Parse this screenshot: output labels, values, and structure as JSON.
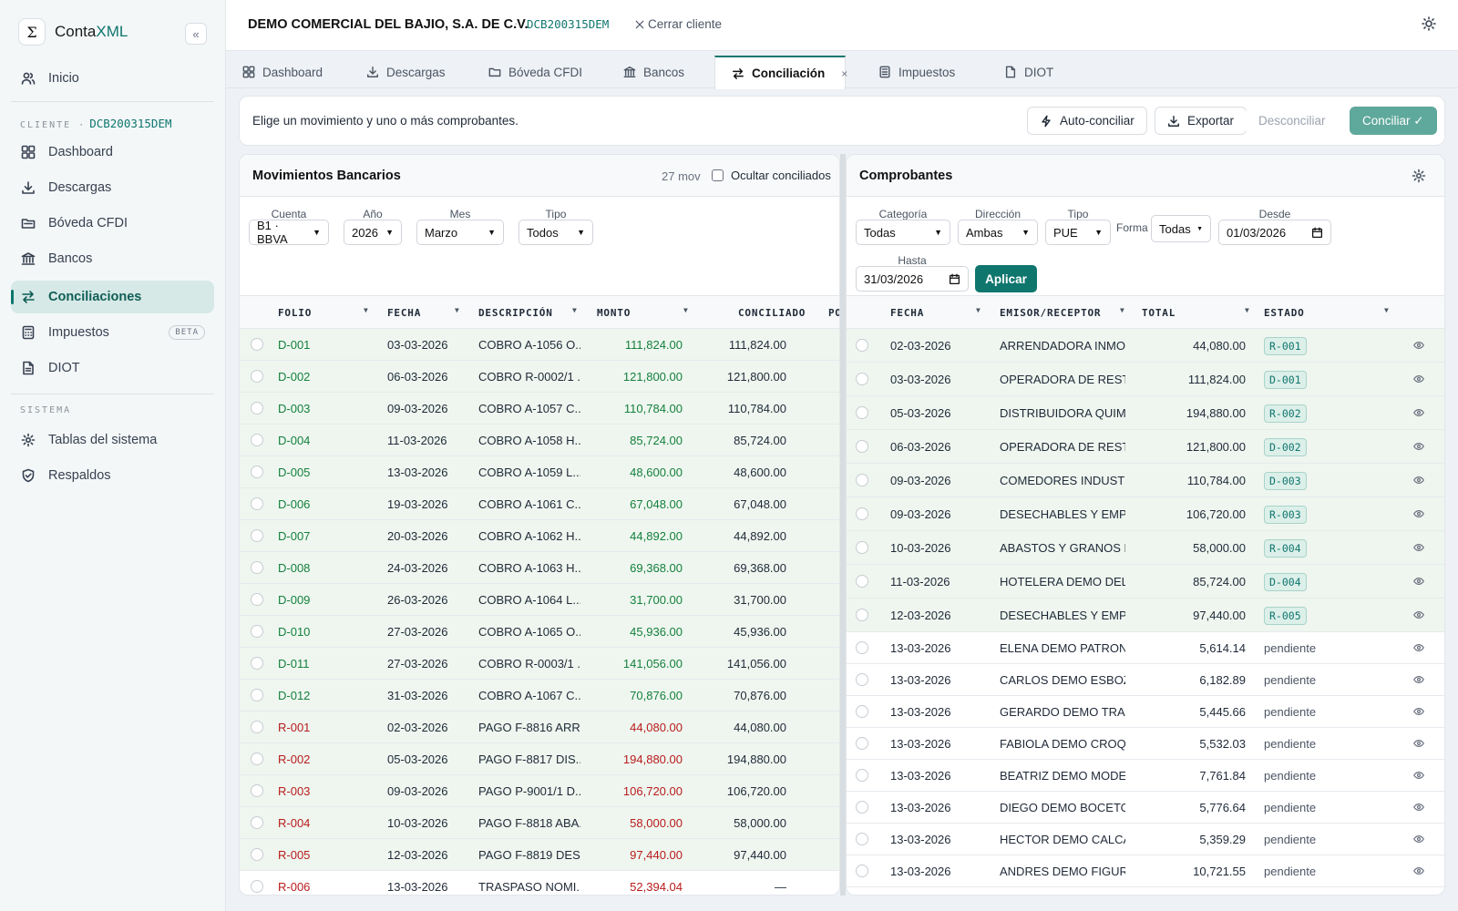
{
  "app": {
    "brand_prefix": "Conta",
    "brand_suffix": "XML",
    "logo_glyph": "Σ",
    "collapse_glyph": "«"
  },
  "sidebar": {
    "home": "Inicio",
    "client_label": "CLIENTE ·",
    "client_rfc": "DCB200315DEM",
    "items": [
      {
        "label": "Dashboard",
        "icon": "dashboard-icon"
      },
      {
        "label": "Descargas",
        "icon": "download-icon"
      },
      {
        "label": "Bóveda CFDI",
        "icon": "folder-icon"
      },
      {
        "label": "Bancos",
        "icon": "bank-icon"
      },
      {
        "label": "Conciliaciones",
        "icon": "reconcile-icon",
        "active": true
      },
      {
        "label": "Impuestos",
        "icon": "calculator-icon",
        "badge": "BETA"
      },
      {
        "label": "DIOT",
        "icon": "document-icon"
      }
    ],
    "system_label": "SISTEMA",
    "system_items": [
      {
        "label": "Tablas del sistema",
        "icon": "gear-icon"
      },
      {
        "label": "Respaldos",
        "icon": "shield-icon"
      }
    ]
  },
  "header": {
    "client_name": "DEMO COMERCIAL DEL BAJIO, S.A. DE C.V.",
    "dot": "·",
    "client_rfc": "DCB200315DEM",
    "close_client": "Cerrar cliente"
  },
  "tabs": [
    {
      "label": "Dashboard"
    },
    {
      "label": "Descargas"
    },
    {
      "label": "Bóveda CFDI"
    },
    {
      "label": "Bancos"
    },
    {
      "label": "Conciliación",
      "active": true,
      "close": "×"
    },
    {
      "label": "Impuestos"
    },
    {
      "label": "DIOT"
    }
  ],
  "toolbar": {
    "instruction": "Elige un movimiento y uno o más comprobantes.",
    "auto": "Auto-conciliar",
    "export": "Exportar",
    "unreconcile": "Desconciliar",
    "reconcile": "Conciliar ✓"
  },
  "movements": {
    "title": "Movimientos Bancarios",
    "count": "27 mov",
    "hide_label": "Ocultar conciliados",
    "filters": {
      "account_label": "Cuenta",
      "account": "B1 · BBVA",
      "year_label": "Año",
      "year": "2026",
      "month_label": "Mes",
      "month": "Marzo",
      "type_label": "Tipo",
      "type": "Todos"
    },
    "columns": [
      "FOLIO",
      "FECHA",
      "DESCRIPCIÓN",
      "MONTO",
      "CONCILIADO",
      "PO"
    ],
    "rows": [
      {
        "folio": "D-001",
        "date": "03-03-2026",
        "desc": "COBRO A-1056 O...",
        "amount": "111,824.00",
        "rec": "111,824.00",
        "kind": "d"
      },
      {
        "folio": "D-002",
        "date": "06-03-2026",
        "desc": "COBRO R-0002/1 ...",
        "amount": "121,800.00",
        "rec": "121,800.00",
        "kind": "d"
      },
      {
        "folio": "D-003",
        "date": "09-03-2026",
        "desc": "COBRO A-1057 C...",
        "amount": "110,784.00",
        "rec": "110,784.00",
        "kind": "d"
      },
      {
        "folio": "D-004",
        "date": "11-03-2026",
        "desc": "COBRO A-1058 H...",
        "amount": "85,724.00",
        "rec": "85,724.00",
        "kind": "d"
      },
      {
        "folio": "D-005",
        "date": "13-03-2026",
        "desc": "COBRO A-1059 L...",
        "amount": "48,600.00",
        "rec": "48,600.00",
        "kind": "d"
      },
      {
        "folio": "D-006",
        "date": "19-03-2026",
        "desc": "COBRO A-1061 C...",
        "amount": "67,048.00",
        "rec": "67,048.00",
        "kind": "d"
      },
      {
        "folio": "D-007",
        "date": "20-03-2026",
        "desc": "COBRO A-1062 H...",
        "amount": "44,892.00",
        "rec": "44,892.00",
        "kind": "d"
      },
      {
        "folio": "D-008",
        "date": "24-03-2026",
        "desc": "COBRO A-1063 H...",
        "amount": "69,368.00",
        "rec": "69,368.00",
        "kind": "d"
      },
      {
        "folio": "D-009",
        "date": "26-03-2026",
        "desc": "COBRO A-1064 L...",
        "amount": "31,700.00",
        "rec": "31,700.00",
        "kind": "d"
      },
      {
        "folio": "D-010",
        "date": "27-03-2026",
        "desc": "COBRO A-1065 O...",
        "amount": "45,936.00",
        "rec": "45,936.00",
        "kind": "d"
      },
      {
        "folio": "D-011",
        "date": "27-03-2026",
        "desc": "COBRO R-0003/1 ...",
        "amount": "141,056.00",
        "rec": "141,056.00",
        "kind": "d"
      },
      {
        "folio": "D-012",
        "date": "31-03-2026",
        "desc": "COBRO A-1067 C...",
        "amount": "70,876.00",
        "rec": "70,876.00",
        "kind": "d"
      },
      {
        "folio": "R-001",
        "date": "02-03-2026",
        "desc": "PAGO F-8816 ARR...",
        "amount": "44,080.00",
        "rec": "44,080.00",
        "kind": "r"
      },
      {
        "folio": "R-002",
        "date": "05-03-2026",
        "desc": "PAGO F-8817 DIS...",
        "amount": "194,880.00",
        "rec": "194,880.00",
        "kind": "r"
      },
      {
        "folio": "R-003",
        "date": "09-03-2026",
        "desc": "PAGO P-9001/1 D...",
        "amount": "106,720.00",
        "rec": "106,720.00",
        "kind": "r"
      },
      {
        "folio": "R-004",
        "date": "10-03-2026",
        "desc": "PAGO F-8818 ABA...",
        "amount": "58,000.00",
        "rec": "58,000.00",
        "kind": "r"
      },
      {
        "folio": "R-005",
        "date": "12-03-2026",
        "desc": "PAGO F-8819 DES...",
        "amount": "97,440.00",
        "rec": "97,440.00",
        "kind": "r"
      },
      {
        "folio": "R-006",
        "date": "13-03-2026",
        "desc": "TRASPASO NOMI...",
        "amount": "52,394.04",
        "rec": "—",
        "kind": "r",
        "pending": true
      }
    ]
  },
  "vouchers": {
    "title": "Comprobantes",
    "filters": {
      "category_label": "Categoría",
      "category": "Todas",
      "direction_label": "Dirección",
      "direction": "Ambas",
      "type_label": "Tipo",
      "type": "PUE",
      "form_label": "Forma",
      "form": "Todas",
      "from_label": "Desde",
      "from": "01/03/2026",
      "to_label": "Hasta",
      "to": "31/03/2026",
      "apply": "Aplicar"
    },
    "columns": [
      "FECHA",
      "EMISOR/RECEPTOR",
      "TOTAL",
      "ESTADO"
    ],
    "rows": [
      {
        "date": "02-03-2026",
        "party": "ARRENDADORA INMOB...",
        "total": "44,080.00",
        "status": "R-001",
        "matched": true
      },
      {
        "date": "03-03-2026",
        "party": "OPERADORA DE RESTA...",
        "total": "111,824.00",
        "status": "D-001",
        "matched": true
      },
      {
        "date": "05-03-2026",
        "party": "DISTRIBUIDORA QUIMI...",
        "total": "194,880.00",
        "status": "R-002",
        "matched": true
      },
      {
        "date": "06-03-2026",
        "party": "OPERADORA DE RESTA...",
        "total": "121,800.00",
        "status": "D-002",
        "matched": true
      },
      {
        "date": "09-03-2026",
        "party": "COMEDORES INDUSTRI...",
        "total": "110,784.00",
        "status": "D-003",
        "matched": true
      },
      {
        "date": "09-03-2026",
        "party": "DESECHABLES Y EMPA...",
        "total": "106,720.00",
        "status": "R-003",
        "matched": true
      },
      {
        "date": "10-03-2026",
        "party": "ABASTOS Y GRANOS D...",
        "total": "58,000.00",
        "status": "R-004",
        "matched": true
      },
      {
        "date": "11-03-2026",
        "party": "HOTELERA DEMO DEL ...",
        "total": "85,724.00",
        "status": "D-004",
        "matched": true
      },
      {
        "date": "12-03-2026",
        "party": "DESECHABLES Y EMPA...",
        "total": "97,440.00",
        "status": "R-005",
        "matched": true
      },
      {
        "date": "13-03-2026",
        "party": "ELENA DEMO PATRON",
        "total": "5,614.14",
        "status": "pendiente",
        "matched": false
      },
      {
        "date": "13-03-2026",
        "party": "CARLOS DEMO ESBOZO",
        "total": "6,182.89",
        "status": "pendiente",
        "matched": false
      },
      {
        "date": "13-03-2026",
        "party": "GERARDO DEMO TRAZO",
        "total": "5,445.66",
        "status": "pendiente",
        "matched": false
      },
      {
        "date": "13-03-2026",
        "party": "FABIOLA DEMO CROQ...",
        "total": "5,532.03",
        "status": "pendiente",
        "matched": false
      },
      {
        "date": "13-03-2026",
        "party": "BEATRIZ DEMO MODELO",
        "total": "7,761.84",
        "status": "pendiente",
        "matched": false
      },
      {
        "date": "13-03-2026",
        "party": "DIEGO DEMO BOCETO",
        "total": "5,776.64",
        "status": "pendiente",
        "matched": false
      },
      {
        "date": "13-03-2026",
        "party": "HECTOR DEMO CALCA",
        "total": "5,359.29",
        "status": "pendiente",
        "matched": false
      },
      {
        "date": "13-03-2026",
        "party": "ANDRES DEMO FIGURA",
        "total": "10,721.55",
        "status": "pendiente",
        "matched": false
      }
    ]
  },
  "colors": {
    "accent": "#0f766e",
    "debit": "#15803d",
    "credit": "#b91c1c",
    "reconciled_row": "#eef6ef",
    "active_nav": "#d6e9e6"
  }
}
